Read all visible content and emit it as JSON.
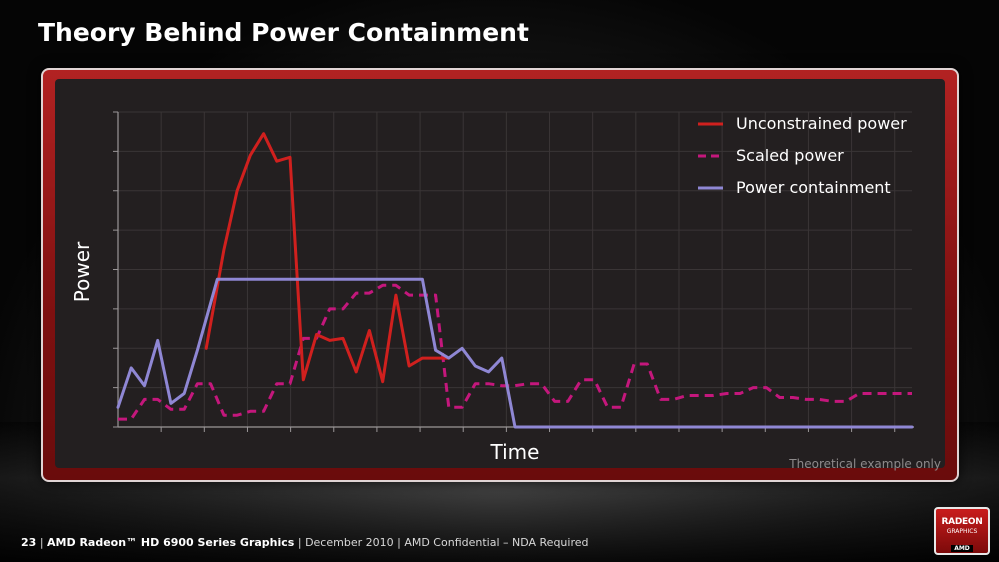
{
  "slide": {
    "title": "Theory Behind Power Containment",
    "note": "Theoretical example only"
  },
  "footer": {
    "page": "23",
    "separator": "|",
    "product": "AMD Radeon™ HD 6900 Series Graphics",
    "date": "December 2010",
    "confidentiality": "AMD Confidential – NDA Required"
  },
  "logo": {
    "line1": "RADEON",
    "line2": "GRAPHICS",
    "line3": "AMD"
  },
  "colors": {
    "unconstrained": "#d0201e",
    "scaled": "#c4177c",
    "containment": "#8f87d4",
    "grid": "#3a3536",
    "axis": "#9a9697"
  },
  "chart_data": {
    "type": "line",
    "xlabel": "Time",
    "ylabel": "Power",
    "xlim": [
      0,
      36
    ],
    "ylim": [
      0,
      8
    ],
    "grid": true,
    "legend_position": "top-right",
    "series": [
      {
        "name": "Unconstrained power",
        "style": "solid",
        "x": [
          4,
          4.8,
          5.4,
          6,
          6.6,
          7.2,
          7.8,
          8.4,
          9,
          9.6,
          10.2,
          10.8,
          11.4,
          12,
          12.6,
          13.2,
          13.8,
          14.4,
          15
        ],
        "y": [
          2.0,
          4.5,
          6.0,
          6.9,
          7.45,
          6.75,
          6.85,
          1.2,
          2.35,
          2.2,
          2.25,
          1.4,
          2.45,
          1.15,
          3.35,
          1.55,
          1.75,
          1.75,
          1.75
        ]
      },
      {
        "name": "Scaled power",
        "style": "dashed",
        "x": [
          0,
          0.6,
          1.2,
          1.8,
          2.4,
          3,
          3.6,
          4.2,
          4.8,
          5.4,
          6,
          6.6,
          7.2,
          7.8,
          8.4,
          9,
          9.6,
          10.2,
          10.8,
          11.4,
          12,
          12.6,
          13.2,
          13.8,
          14.4,
          15,
          15.6,
          16.2,
          16.8,
          17.4,
          18,
          18.6,
          19.2,
          19.8,
          20.4,
          21,
          21.6,
          22.2,
          22.8,
          23.4,
          24,
          24.6,
          25.2,
          25.8,
          26.4,
          27,
          27.6,
          28.2,
          28.8,
          29.4,
          30,
          30.6,
          31.2,
          31.8,
          32.4,
          33,
          33.6,
          34.2,
          34.8,
          35.4,
          36
        ],
        "y": [
          0.2,
          0.2,
          0.7,
          0.7,
          0.45,
          0.45,
          1.1,
          1.1,
          0.3,
          0.3,
          0.4,
          0.4,
          1.1,
          1.1,
          2.25,
          2.25,
          3.0,
          3.0,
          3.4,
          3.4,
          3.6,
          3.6,
          3.35,
          3.35,
          3.35,
          0.5,
          0.5,
          1.1,
          1.1,
          1.05,
          1.05,
          1.1,
          1.1,
          0.65,
          0.65,
          1.2,
          1.2,
          0.5,
          0.5,
          1.6,
          1.6,
          0.7,
          0.7,
          0.8,
          0.8,
          0.8,
          0.85,
          0.85,
          1.0,
          1.0,
          0.75,
          0.75,
          0.7,
          0.7,
          0.65,
          0.65,
          0.85,
          0.85,
          0.85,
          0.85,
          0.85
        ]
      },
      {
        "name": "Power containment",
        "style": "solid",
        "x": [
          0,
          0.6,
          1.2,
          1.8,
          2.4,
          3,
          3.6,
          4.5,
          5.4,
          6,
          7,
          8,
          9,
          10,
          11,
          12,
          13,
          13.8,
          14.4,
          15,
          15.6,
          16.2,
          16.8,
          17.4,
          18,
          19,
          20,
          22,
          24,
          26,
          28,
          30,
          32,
          34,
          36
        ],
        "y": [
          0.5,
          1.5,
          1.05,
          2.2,
          0.6,
          0.85,
          1.95,
          3.75,
          3.75,
          3.75,
          3.75,
          3.75,
          3.75,
          3.75,
          3.75,
          3.75,
          3.75,
          3.75,
          1.95,
          1.75,
          2.0,
          1.55,
          1.4,
          1.75,
          0.0,
          0.0,
          0.0,
          0.0,
          0.0,
          0.0,
          0.0,
          0.0,
          0.0,
          0.0,
          0.0
        ]
      }
    ]
  }
}
